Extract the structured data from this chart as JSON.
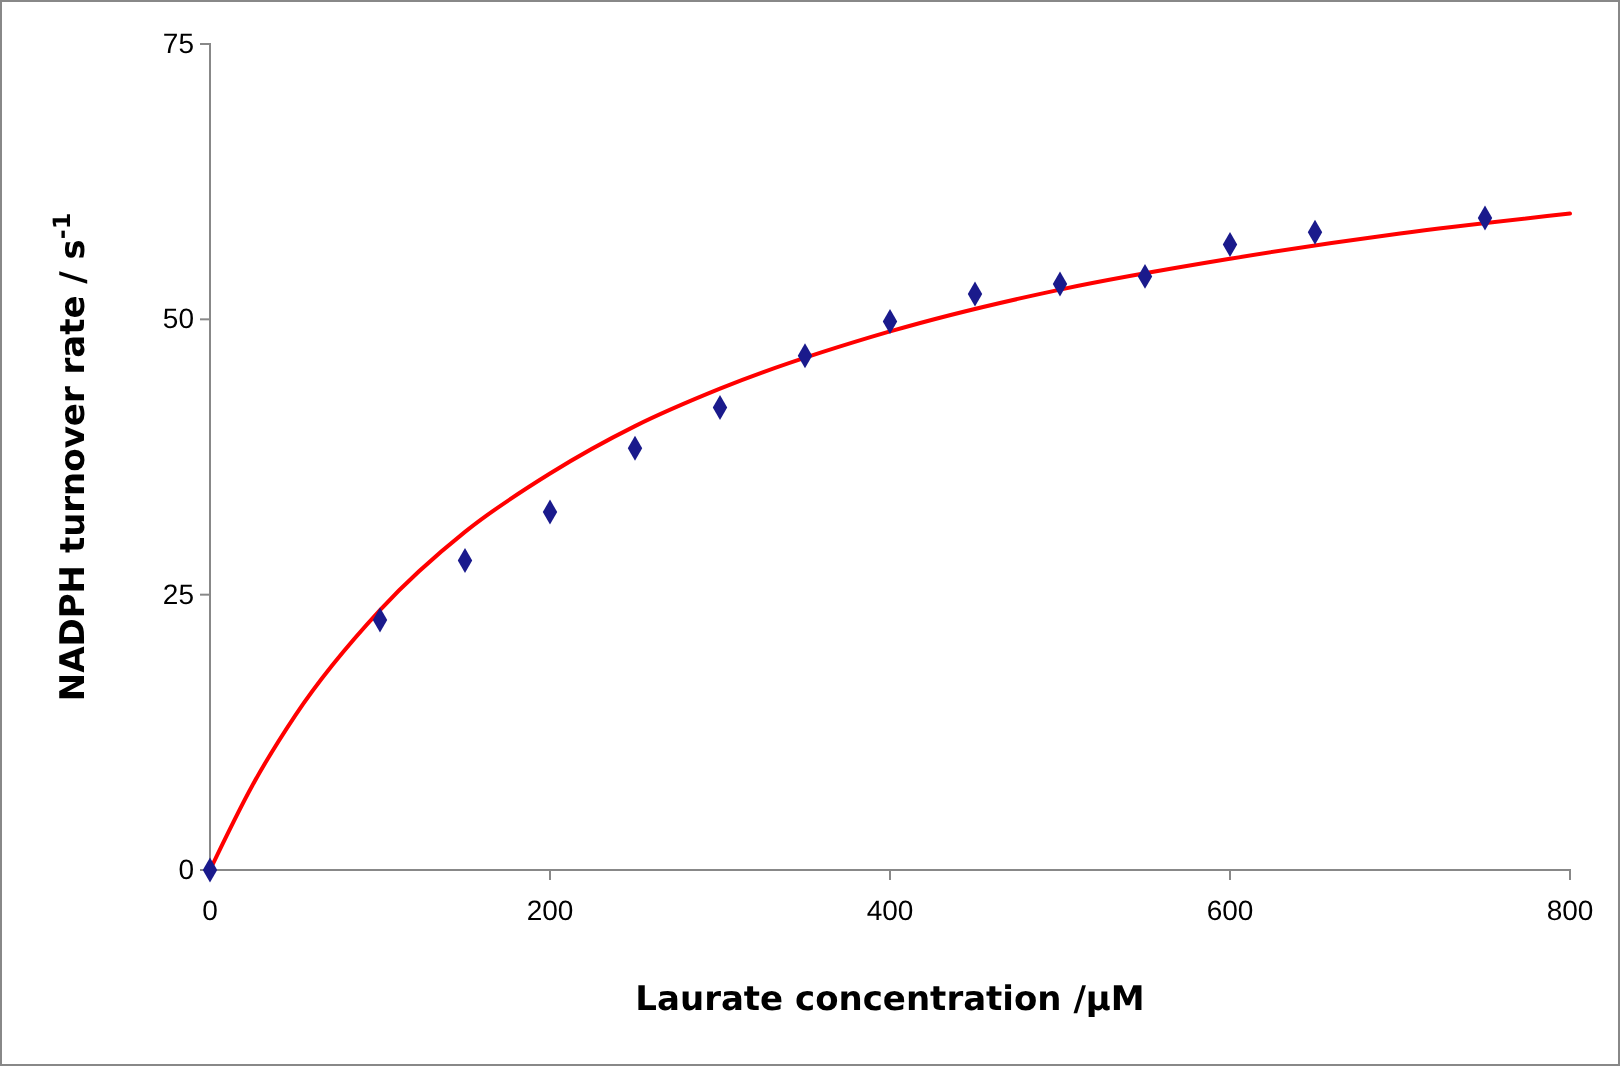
{
  "chart_data": {
    "type": "scatter",
    "xlabel": "Laurate concentration /μM",
    "ylabel": "NADPH turnover rate / s$^{-1}$",
    "xlim": [
      0,
      800
    ],
    "xticks": [
      0,
      200,
      400,
      600,
      800
    ],
    "ylim": [
      0,
      75
    ],
    "yticks": [
      0,
      25,
      50,
      75
    ],
    "grid": false,
    "series": [
      {
        "marker": "diamond",
        "color": "#1a1a8c",
        "x": [
          0,
          100,
          150,
          200,
          250,
          300,
          350,
          400,
          450,
          500,
          550,
          600,
          650,
          750
        ],
        "values": [
          0,
          22.7,
          28.1,
          32.5,
          38.3,
          42.0,
          46.7,
          49.8,
          52.3,
          53.2,
          53.9,
          56.8,
          57.9,
          59.2
        ]
      },
      {
        "type": "line",
        "marker": "none",
        "line_style": "solid",
        "color": "#ff0000",
        "x": [
          0,
          25,
          50,
          100,
          150,
          200,
          250,
          300,
          400,
          500,
          600,
          700,
          800
        ],
        "values": [
          0,
          7.7,
          14.0,
          23.6,
          30.7,
          36.0,
          40.3,
          43.7,
          48.9,
          52.7,
          55.5,
          57.8,
          59.6
        ]
      }
    ]
  }
}
